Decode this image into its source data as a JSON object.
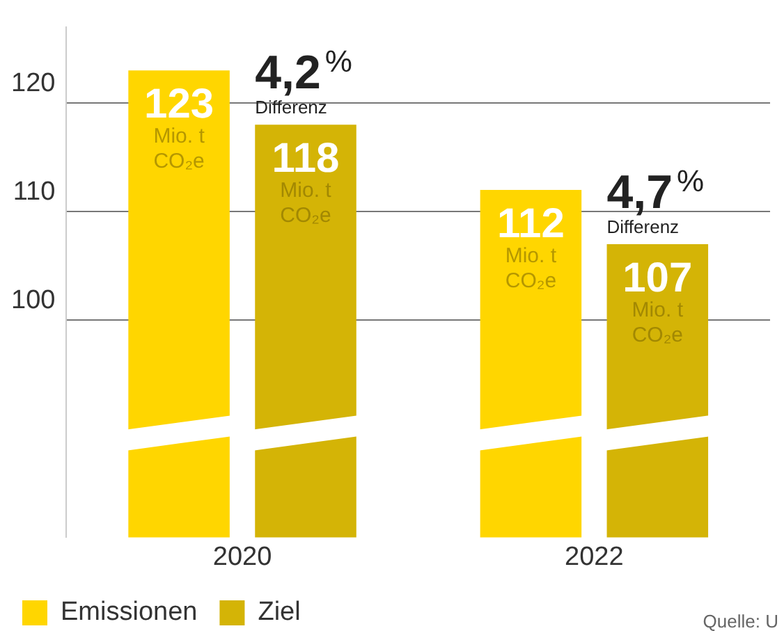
{
  "chart_data": {
    "type": "bar",
    "categories": [
      "2020",
      "2022"
    ],
    "series": [
      {
        "name": "Emissionen",
        "color": "#ffd600",
        "values": [
          123,
          112
        ],
        "value_labels": [
          "123 Mio. t CO₂e",
          "112 Mio. t CO₂e"
        ]
      },
      {
        "name": "Ziel",
        "color": "#d4b406",
        "values": [
          118,
          107
        ],
        "value_labels": [
          "118 Mio. t CO₂e",
          "107 Mio. t CO₂e"
        ]
      }
    ],
    "ylim": [
      80,
      127
    ],
    "yticks": [
      100,
      110,
      120
    ],
    "grid": "y",
    "legend": "bottom left",
    "annotations": [
      "4,2%",
      "Differenz",
      "4,7%",
      "Differenz",
      "Quelle: U"
    ]
  }
}
